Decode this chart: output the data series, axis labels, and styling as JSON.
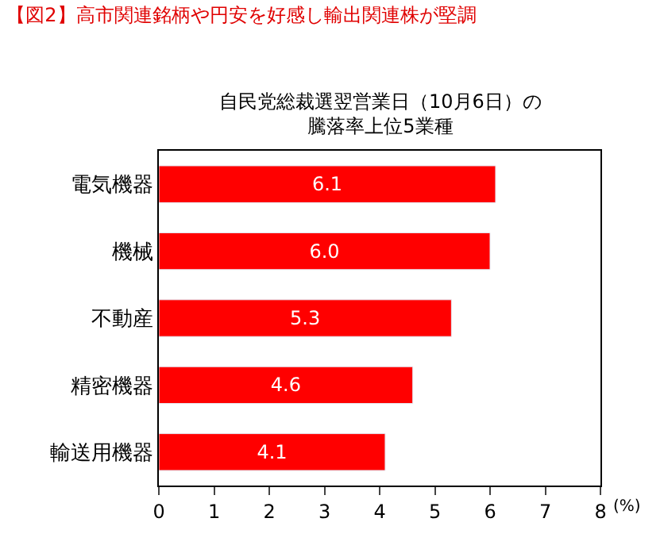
{
  "chart_data": {
    "type": "bar",
    "orientation": "horizontal",
    "title": "【図2】高市関連銘柄や円安を好感し輸出関連株が堅調",
    "subtitle": "自民党総裁選翌営業日（10月6日）の騰落率上位5業種",
    "categories": [
      "電気機器",
      "機械",
      "不動産",
      "精密機器",
      "輸送用機器"
    ],
    "values": [
      6.1,
      6.0,
      5.3,
      4.6,
      4.1
    ],
    "value_labels": [
      "6.1",
      "6.0",
      "5.3",
      "4.6",
      "4.1"
    ],
    "color": "#ff0000",
    "xlabel": "(%)",
    "xlim": [
      0,
      8
    ],
    "xticks": [
      0,
      1,
      2,
      3,
      4,
      5,
      6,
      7,
      8
    ]
  }
}
